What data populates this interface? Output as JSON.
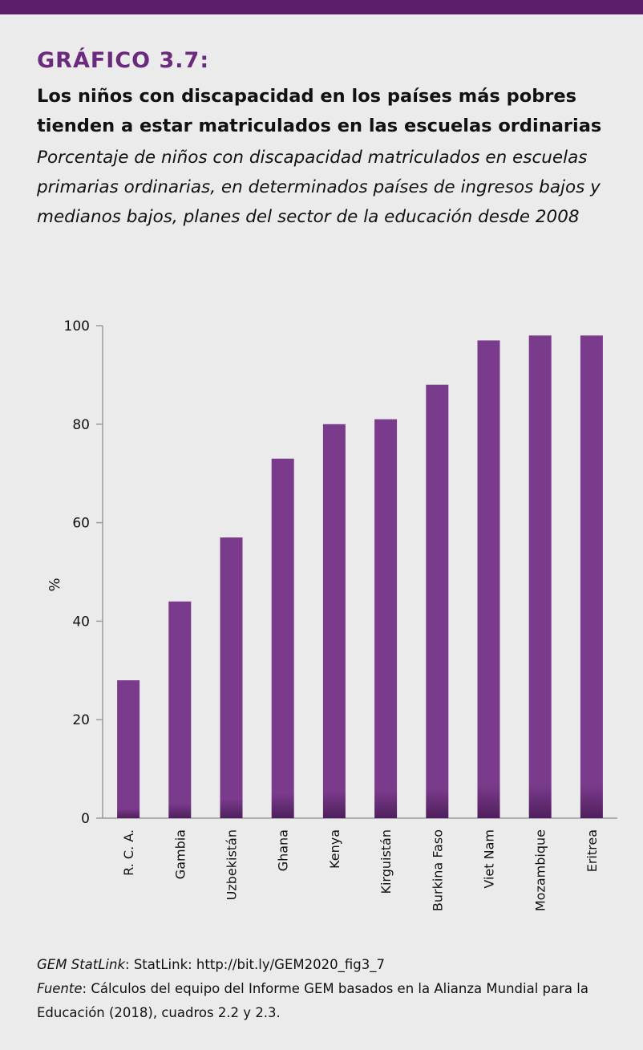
{
  "header": {
    "figure_label": "GRÁFICO 3.7:",
    "title": "Los niños con discapacidad en los países más pobres tienden a estar matriculados en las escuelas ordinarias",
    "subtitle": "Porcentaje de niños con discapacidad matriculados en escuelas primarias ordinarias, en determinados países de ingresos bajos y medianos bajos, planes del sector de la educación desde 2008"
  },
  "chart_data": {
    "type": "bar",
    "categories": [
      "R. C. A.",
      "Gambia",
      "Uzbekistán",
      "Ghana",
      "Kenya",
      "Kirguistán",
      "Burkina Faso",
      "Viet Nam",
      "Mozambique",
      "Eritrea"
    ],
    "values": [
      28,
      44,
      57,
      73,
      80,
      81,
      88,
      97,
      98,
      98
    ],
    "ylabel": "%",
    "xlabel": "",
    "ylim": [
      0,
      100
    ],
    "yticks": [
      0,
      20,
      40,
      60,
      80,
      100
    ],
    "grid": false,
    "bar_color": "#7b3b8c",
    "bar_base_color": "#4f1f5d"
  },
  "footer": {
    "statlink_label": "GEM StatLink",
    "statlink_text": ": StatLink: http://bit.ly/GEM2020_fig3_7",
    "source_label": "Fuente",
    "source_text": ": Cálculos del equipo del Informe GEM basados en la Alianza Mundial para la Educación (2018), cuadros 2.2 y 2.3."
  },
  "colors": {
    "accent": "#6a2a7d",
    "top_bar": "#5c1e6b",
    "background": "#ebebeb"
  }
}
